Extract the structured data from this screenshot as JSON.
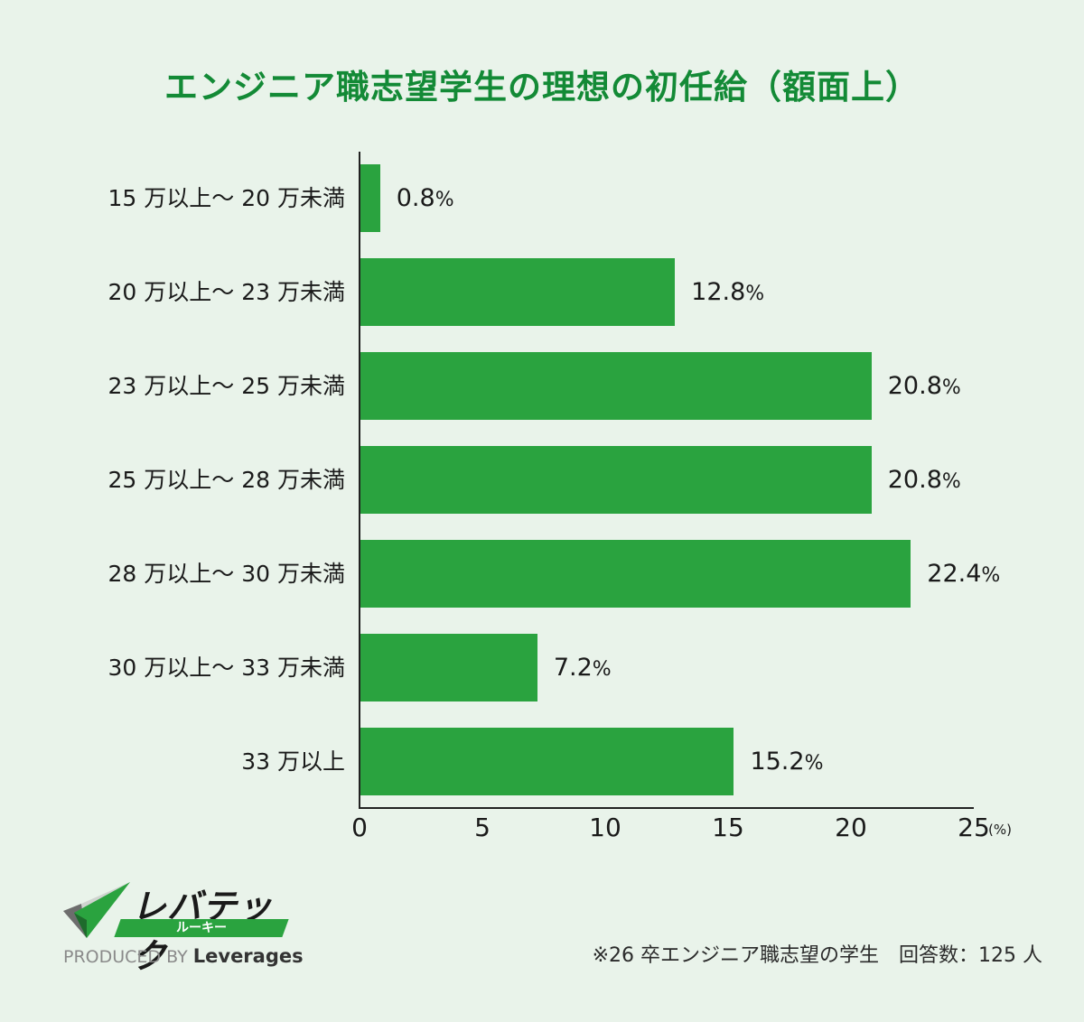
{
  "title": "エンジニア職志望学生の理想の初任給（額面上）",
  "colors": {
    "title": "#138a36",
    "bar": "#2aa33f",
    "background": "#e9f3ea",
    "text": "#1a1a1a"
  },
  "chart_data": {
    "type": "bar",
    "orientation": "horizontal",
    "title": "エンジニア職志望学生の理想の初任給（額面上）",
    "categories": [
      "15 万以上～ 20 万未満",
      "20 万以上～ 23 万未満",
      "23 万以上～ 25 万未満",
      "25 万以上～ 28 万未満",
      "28 万以上～ 30 万未満",
      "30 万以上～ 33 万未満",
      "33 万以上"
    ],
    "values": [
      0.8,
      12.8,
      20.8,
      20.8,
      22.4,
      7.2,
      15.2
    ],
    "value_labels": [
      "0.8",
      "12.8",
      "20.8",
      "20.8",
      "22.4",
      "7.2",
      "15.2"
    ],
    "value_suffix": "%",
    "xlabel": "",
    "x_unit": "(%)",
    "ylabel": "",
    "xlim": [
      0,
      25
    ],
    "xticks": [
      "0",
      "5",
      "10",
      "15",
      "20",
      "25"
    ],
    "grid": false,
    "legend": null
  },
  "logo": {
    "wordmark": "レバテック",
    "subbrand": "ルーキー",
    "produced_by": "PRODUCED BY",
    "company": "Leverages"
  },
  "footnote": "※26 卒エンジニア職志望の学生　回答数：125 人"
}
